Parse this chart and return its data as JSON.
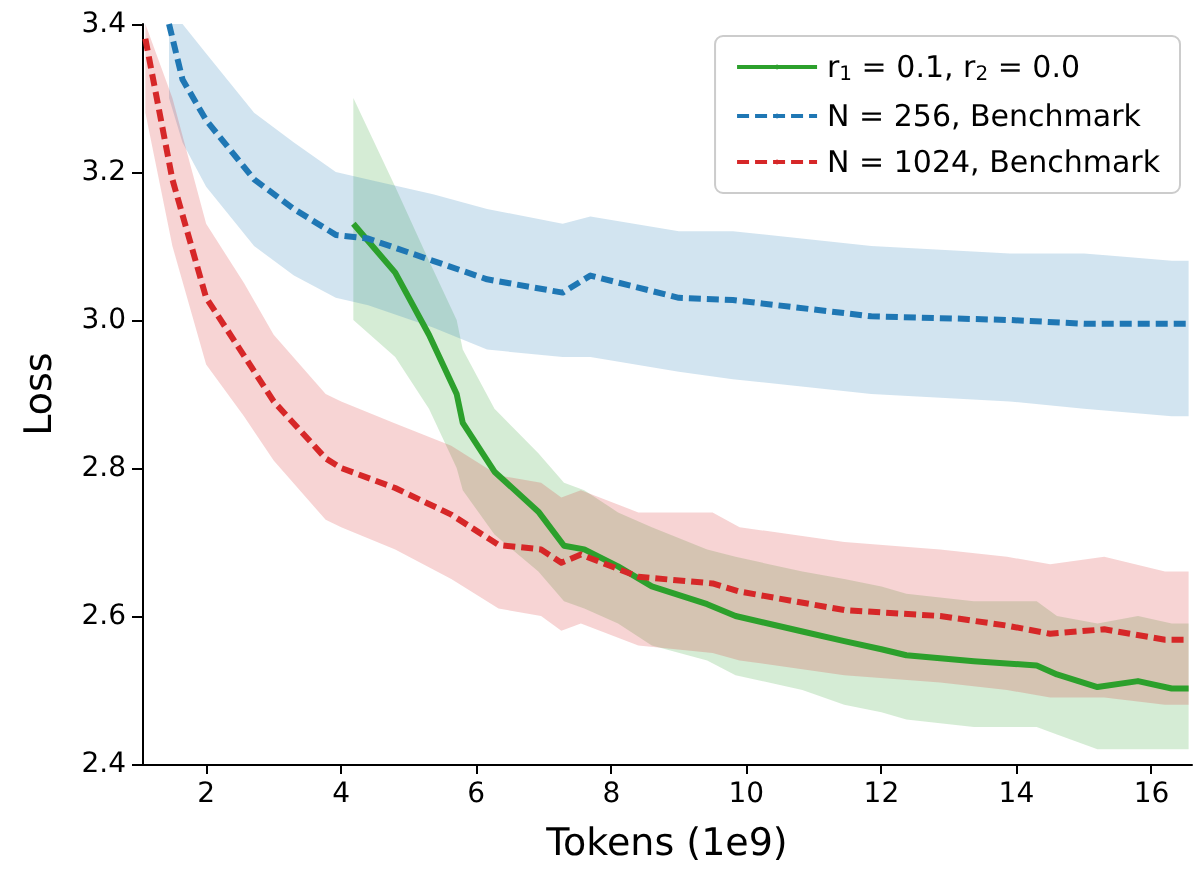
{
  "chart_data": {
    "type": "line",
    "xlabel": "Tokens (1e9)",
    "ylabel": "Loss",
    "xlim": [
      1.05,
      16.6
    ],
    "ylim": [
      2.4,
      3.4
    ],
    "xticks": [
      2,
      4,
      6,
      8,
      10,
      12,
      14,
      16
    ],
    "yticks": [
      {
        "value": 2.4,
        "label": "2.4"
      },
      {
        "value": 2.6,
        "label": "2.6"
      },
      {
        "value": 2.8,
        "label": "2.8"
      },
      {
        "value": 3.0,
        "label": "3.0"
      },
      {
        "value": 3.2,
        "label": "3.2"
      },
      {
        "value": 3.4,
        "label": "3.4"
      }
    ],
    "grid": false,
    "legend": "top right",
    "marker": "none",
    "series": [
      {
        "name": "r$_{1}$ = 0.1, r$_{2}$ = 0.0",
        "color": "#2ca02c",
        "line_style": "solid",
        "x": [
          4.18,
          4.8,
          5.3,
          5.71,
          5.8,
          6.27,
          6.92,
          7.3,
          7.6,
          8.1,
          8.6,
          9.42,
          9.84,
          10.83,
          11.45,
          12.0,
          12.37,
          13.37,
          14.3,
          14.6,
          15.2,
          15.8,
          16.3,
          16.55
        ],
        "values": [
          3.13,
          3.064,
          2.98,
          2.9,
          2.861,
          2.795,
          2.741,
          2.695,
          2.69,
          2.667,
          2.64,
          2.616,
          2.6,
          2.579,
          2.566,
          2.555,
          2.547,
          2.539,
          2.533,
          2.521,
          2.504,
          2.512,
          2.502,
          2.502
        ],
        "lower": [
          3.0,
          2.95,
          2.88,
          2.8,
          2.77,
          2.71,
          2.66,
          2.62,
          2.61,
          2.59,
          2.56,
          2.54,
          2.52,
          2.5,
          2.48,
          2.47,
          2.46,
          2.45,
          2.45,
          2.44,
          2.42,
          2.42,
          2.42,
          2.42
        ],
        "upper": [
          3.3,
          3.18,
          3.08,
          3.0,
          2.96,
          2.88,
          2.82,
          2.78,
          2.77,
          2.74,
          2.72,
          2.69,
          2.68,
          2.66,
          2.65,
          2.64,
          2.63,
          2.62,
          2.62,
          2.6,
          2.59,
          2.6,
          2.59,
          2.59
        ]
      },
      {
        "name": "N = 256, Benchmark",
        "color": "#1f77b4",
        "line_style": "dashed",
        "x": [
          1.45,
          1.65,
          2.0,
          2.71,
          3.3,
          3.92,
          4.4,
          5.36,
          6.16,
          7.28,
          7.69,
          9.0,
          9.8,
          11.85,
          13.9,
          15.0,
          16.3,
          16.55
        ],
        "values": [
          3.4,
          3.325,
          3.27,
          3.19,
          3.15,
          3.115,
          3.11,
          3.08,
          3.055,
          3.037,
          3.06,
          3.03,
          3.027,
          3.005,
          3.0,
          2.995,
          2.995,
          2.995
        ],
        "lower": [
          3.3,
          3.24,
          3.18,
          3.1,
          3.06,
          3.03,
          3.02,
          2.99,
          2.96,
          2.95,
          2.95,
          2.93,
          2.92,
          2.9,
          2.89,
          2.88,
          2.87,
          2.87
        ],
        "upper": [
          3.4,
          3.4,
          3.36,
          3.28,
          3.24,
          3.2,
          3.19,
          3.17,
          3.15,
          3.13,
          3.14,
          3.12,
          3.12,
          3.1,
          3.09,
          3.09,
          3.08,
          3.08
        ]
      },
      {
        "name": "N = 1024, Benchmark",
        "color": "#d62728",
        "line_style": "dashed",
        "x": [
          1.1,
          1.5,
          2.0,
          2.56,
          3.0,
          3.77,
          4.0,
          4.8,
          5.63,
          6.33,
          6.96,
          7.26,
          7.55,
          8.4,
          9.5,
          9.9,
          11.45,
          12.87,
          13.86,
          14.5,
          15.3,
          16.2,
          16.55
        ],
        "values": [
          3.38,
          3.19,
          3.03,
          2.952,
          2.89,
          2.813,
          2.8,
          2.773,
          2.737,
          2.696,
          2.69,
          2.672,
          2.683,
          2.653,
          2.644,
          2.633,
          2.608,
          2.6,
          2.587,
          2.576,
          2.582,
          2.568,
          2.568
        ],
        "lower": [
          3.28,
          3.1,
          2.94,
          2.87,
          2.81,
          2.73,
          2.72,
          2.69,
          2.65,
          2.61,
          2.6,
          2.58,
          2.59,
          2.56,
          2.55,
          2.54,
          2.52,
          2.51,
          2.5,
          2.49,
          2.49,
          2.48,
          2.48
        ],
        "upper": [
          3.4,
          3.3,
          3.13,
          3.05,
          2.98,
          2.9,
          2.89,
          2.86,
          2.83,
          2.79,
          2.78,
          2.76,
          2.77,
          2.74,
          2.74,
          2.72,
          2.7,
          2.69,
          2.68,
          2.67,
          2.68,
          2.66,
          2.66
        ]
      }
    ]
  }
}
